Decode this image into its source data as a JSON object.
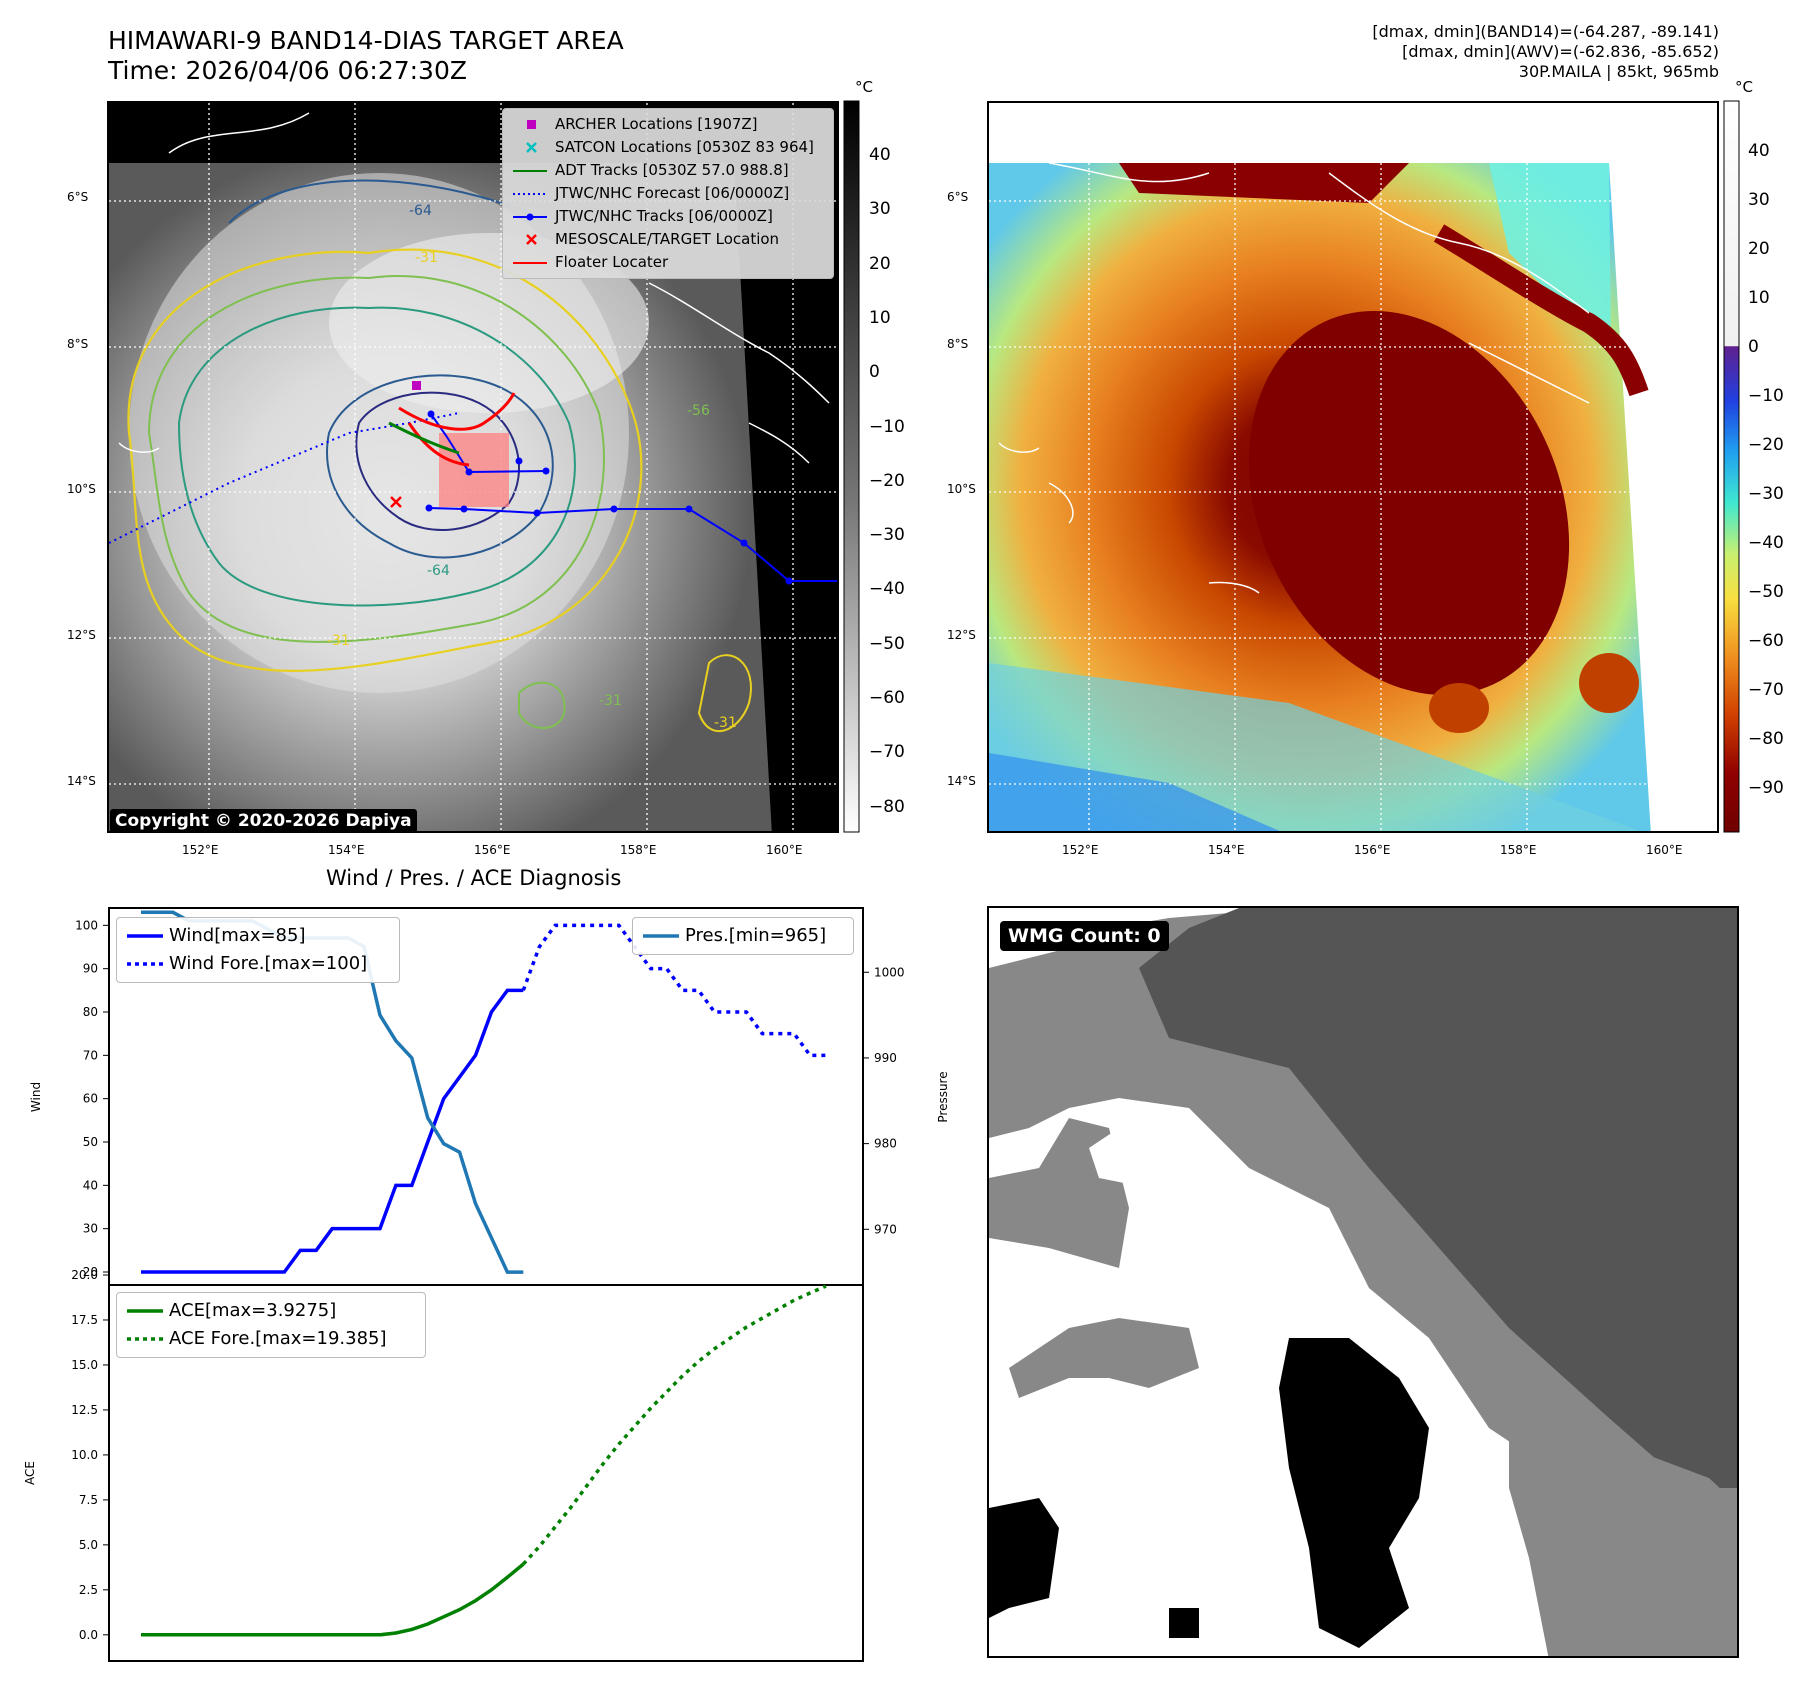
{
  "header": {
    "title_line1": "HIMAWARI-9 BAND14-DIAS TARGET AREA",
    "title_line2": "Time: 2026/04/06 06:27:30Z",
    "info_line1": "[dmax, dmin](BAND14)=(-64.287, -89.141)",
    "info_line2": "[dmax, dmin](AWV)=(-62.836, -85.652)",
    "info_line3": "30P.MAILA | 85kt, 965mb"
  },
  "map": {
    "lat_labels": [
      "6°S",
      "8°S",
      "10°S",
      "12°S",
      "14°S"
    ],
    "lon_labels": [
      "152°E",
      "154°E",
      "156°E",
      "158°E",
      "160°E"
    ],
    "copyright": "Copyright © 2020-2026 Dapiya",
    "contour_labels": [
      "-64",
      "-31",
      "-56",
      "-31",
      "-64",
      "-31",
      "-31",
      "-31"
    ],
    "legend": [
      {
        "label": "ARCHER Locations [1907Z]",
        "color": "#c000c0",
        "symbol": "square"
      },
      {
        "label": "SATCON Locations [0530Z 83 964]",
        "color": "#00c0c0",
        "symbol": "x"
      },
      {
        "label": "ADT Tracks [0530Z 57.0 988.8]",
        "color": "#008000",
        "symbol": "line"
      },
      {
        "label": "JTWC/NHC Forecast [06/0000Z]",
        "color": "#0000ff",
        "symbol": "dotted"
      },
      {
        "label": "JTWC/NHC Tracks [06/0000Z]",
        "color": "#0000ff",
        "symbol": "line-dot"
      },
      {
        "label": "MESOSCALE/TARGET Location",
        "color": "#ff0000",
        "symbol": "x"
      },
      {
        "label": "Floater Locater",
        "color": "#ff0000",
        "symbol": "line"
      }
    ],
    "colorbar_gray": {
      "unit": "°C",
      "ticks": [
        "40",
        "30",
        "20",
        "10",
        "0",
        "−10",
        "−20",
        "−30",
        "−40",
        "−50",
        "−60",
        "−70",
        "−80"
      ]
    },
    "colorbar_color": {
      "unit": "°C",
      "ticks": [
        "40",
        "30",
        "20",
        "10",
        "0",
        "−10",
        "−20",
        "−30",
        "−40",
        "−50",
        "−60",
        "−70",
        "−80",
        "−90"
      ]
    }
  },
  "diagnosis_title": "Wind / Pres. / ACE Diagnosis",
  "wmg_label": "WMG Count: 0",
  "chart_data": [
    {
      "type": "line",
      "ylabel": "Wind",
      "y2label": "Pressure",
      "ylim": [
        17,
        104
      ],
      "y2lim": [
        963.5,
        1007.5
      ],
      "yticks": [
        "100",
        "90",
        "80",
        "70",
        "60",
        "50",
        "40",
        "30",
        "20"
      ],
      "y2ticks": [
        "1000",
        "990",
        "980",
        "970"
      ],
      "series": [
        {
          "name": "Wind[max=85]",
          "style": "solid",
          "color": "#0000ff",
          "values": [
            20,
            20,
            20,
            20,
            20,
            20,
            20,
            20,
            20,
            20,
            25,
            25,
            30,
            30,
            30,
            30,
            40,
            40,
            50,
            60,
            65,
            70,
            80,
            85,
            85
          ]
        },
        {
          "name": "Wind Fore.[max=100]",
          "style": "dotted",
          "color": "#0000ff",
          "offset": 24,
          "values": [
            85,
            95,
            100,
            100,
            100,
            100,
            100,
            95,
            90,
            90,
            85,
            85,
            80,
            80,
            80,
            75,
            75,
            75,
            70,
            70
          ]
        },
        {
          "name": "Pres.[min=965]",
          "style": "solid",
          "color": "#1f77b4",
          "axis": "right",
          "values": [
            1007,
            1007,
            1007,
            1006,
            1006,
            1006,
            1006,
            1006,
            1005,
            1004,
            1004,
            1004,
            1004,
            1004,
            1003,
            995,
            992,
            990,
            983,
            980,
            979,
            973,
            969,
            965,
            965
          ]
        }
      ]
    },
    {
      "type": "line",
      "ylabel": "ACE",
      "ylim": [
        -0.9,
        20
      ],
      "yticks": [
        "20.0",
        "17.5",
        "15.0",
        "12.5",
        "10.0",
        "7.5",
        "5.0",
        "2.5",
        "0.0"
      ],
      "series": [
        {
          "name": "ACE[max=3.9275]",
          "style": "solid",
          "color": "#008000",
          "values": [
            0,
            0,
            0,
            0,
            0,
            0,
            0,
            0,
            0,
            0,
            0,
            0,
            0,
            0,
            0,
            0,
            0.1,
            0.3,
            0.6,
            1.0,
            1.4,
            1.9,
            2.5,
            3.2,
            3.9275
          ]
        },
        {
          "name": "ACE Fore.[max=19.385]",
          "style": "dotted",
          "color": "#008000",
          "offset": 24,
          "values": [
            3.93,
            4.9,
            6.0,
            7.1,
            8.3,
            9.5,
            10.6,
            11.6,
            12.6,
            13.5,
            14.4,
            15.2,
            15.9,
            16.5,
            17.1,
            17.6,
            18.1,
            18.6,
            19.0,
            19.385
          ]
        }
      ]
    }
  ]
}
